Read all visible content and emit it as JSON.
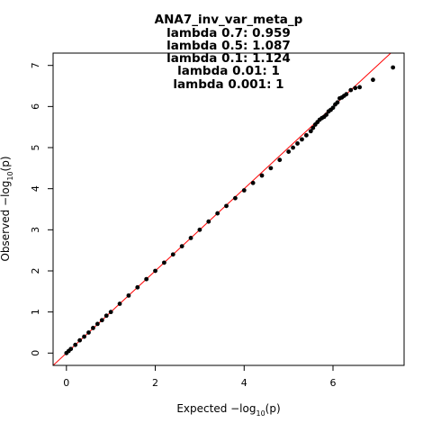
{
  "chart_data": {
    "type": "scatter",
    "title": "ANA7_inv_var_meta_p",
    "subtitle_lines": [
      "lambda 0.7: 0.959",
      "lambda 0.5: 1.087",
      "lambda 0.1: 1.124",
      "lambda 0.01: 1",
      "lambda 0.001: 1"
    ],
    "xlabel": {
      "prefix": "Expected  −log",
      "sub": "10",
      "suffix": "(p)"
    },
    "ylabel": {
      "prefix": "Observed  −log",
      "sub": "10",
      "suffix": "(p)"
    },
    "xlim": [
      -0.3,
      7.6
    ],
    "ylim": [
      -0.3,
      7.3
    ],
    "xticks": [
      0,
      2,
      4,
      6
    ],
    "yticks": [
      0,
      1,
      2,
      3,
      4,
      5,
      6,
      7
    ],
    "reference_line": {
      "slope": 1,
      "intercept": 0,
      "color": "#ff0000"
    },
    "point_color": "#000000",
    "series": [
      {
        "x": [
          0.0,
          0.05,
          0.1,
          0.2,
          0.3,
          0.4,
          0.5,
          0.6,
          0.7,
          0.8,
          0.9,
          1.0,
          1.2,
          1.4,
          1.6,
          1.8,
          2.0,
          2.2,
          2.4,
          2.6,
          2.8,
          3.0,
          3.2,
          3.4,
          3.6,
          3.8,
          4.0,
          4.2,
          4.4,
          4.6,
          4.8,
          5.0,
          5.1,
          5.2,
          5.3,
          5.4,
          5.5,
          5.55,
          5.6,
          5.65,
          5.7,
          5.75,
          5.8,
          5.85,
          5.9,
          5.95,
          6.0,
          6.05,
          6.1,
          6.15,
          6.2,
          6.25,
          6.3,
          6.4,
          6.5,
          6.6,
          6.9,
          7.35
        ],
        "y": [
          0.0,
          0.05,
          0.1,
          0.2,
          0.31,
          0.4,
          0.5,
          0.61,
          0.71,
          0.8,
          0.91,
          1.0,
          1.2,
          1.4,
          1.6,
          1.8,
          2.0,
          2.2,
          2.4,
          2.6,
          2.8,
          3.0,
          3.2,
          3.4,
          3.58,
          3.77,
          3.96,
          4.14,
          4.32,
          4.5,
          4.7,
          4.9,
          5.0,
          5.1,
          5.2,
          5.3,
          5.4,
          5.48,
          5.56,
          5.62,
          5.68,
          5.72,
          5.75,
          5.8,
          5.88,
          5.92,
          5.97,
          6.05,
          6.1,
          6.2,
          6.22,
          6.26,
          6.3,
          6.4,
          6.45,
          6.47,
          6.65,
          6.95
        ]
      }
    ],
    "grid": false,
    "legend": "none"
  }
}
